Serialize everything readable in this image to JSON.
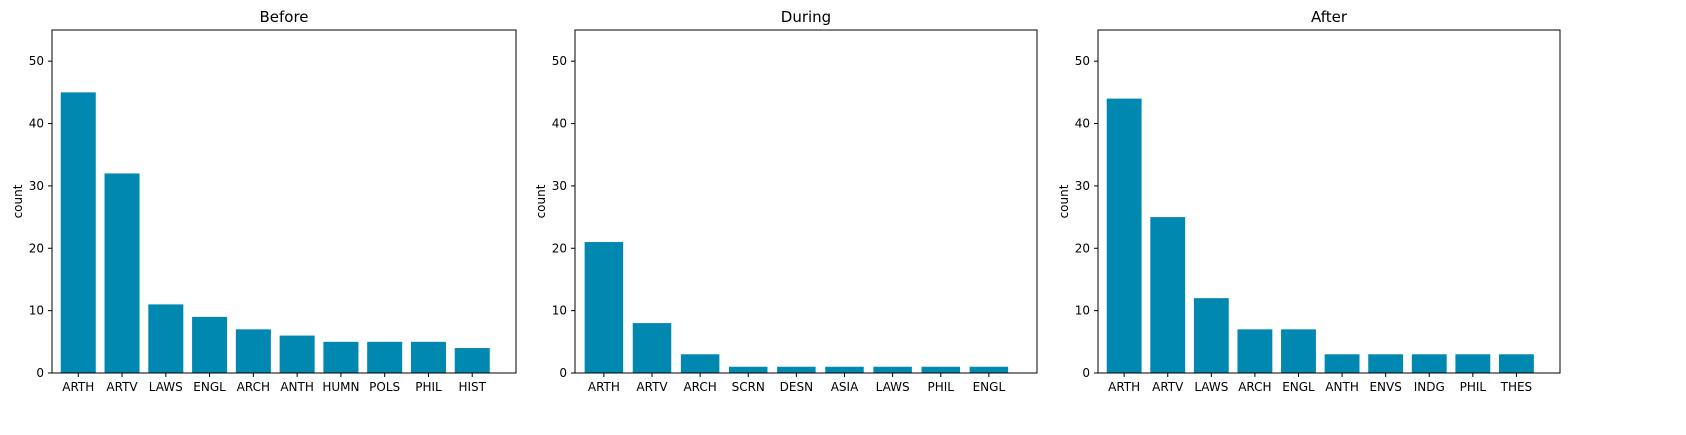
{
  "chart_data": [
    {
      "type": "bar",
      "title": "Before",
      "ylabel": "count",
      "xlabel": "",
      "ylim": [
        0,
        55
      ],
      "yticks": [
        0,
        10,
        20,
        30,
        40,
        50
      ],
      "color": "#0088b0",
      "categories": [
        "ARTH",
        "ARTV",
        "LAWS",
        "ENGL",
        "ARCH",
        "ANTH",
        "HUMN",
        "POLS",
        "PHIL",
        "HIST"
      ],
      "values": [
        45,
        32,
        11,
        9,
        7,
        6,
        5,
        5,
        5,
        4
      ]
    },
    {
      "type": "bar",
      "title": "During",
      "ylabel": "count",
      "xlabel": "",
      "ylim": [
        0,
        55
      ],
      "yticks": [
        0,
        10,
        20,
        30,
        40,
        50
      ],
      "color": "#0088b0",
      "categories": [
        "ARTH",
        "ARTV",
        "ARCH",
        "SCRN",
        "DESN",
        "ASIA",
        "LAWS",
        "PHIL",
        "ENGL"
      ],
      "values": [
        21,
        8,
        3,
        1,
        1,
        1,
        1,
        1,
        1
      ]
    },
    {
      "type": "bar",
      "title": "After",
      "ylabel": "count",
      "xlabel": "",
      "ylim": [
        0,
        55
      ],
      "yticks": [
        0,
        10,
        20,
        30,
        40,
        50
      ],
      "color": "#0088b0",
      "categories": [
        "ARTH",
        "ARTV",
        "LAWS",
        "ARCH",
        "ENGL",
        "ANTH",
        "ENVS",
        "INDG",
        "PHIL",
        "THES"
      ],
      "values": [
        44,
        25,
        12,
        7,
        7,
        3,
        3,
        3,
        3,
        3
      ]
    }
  ]
}
